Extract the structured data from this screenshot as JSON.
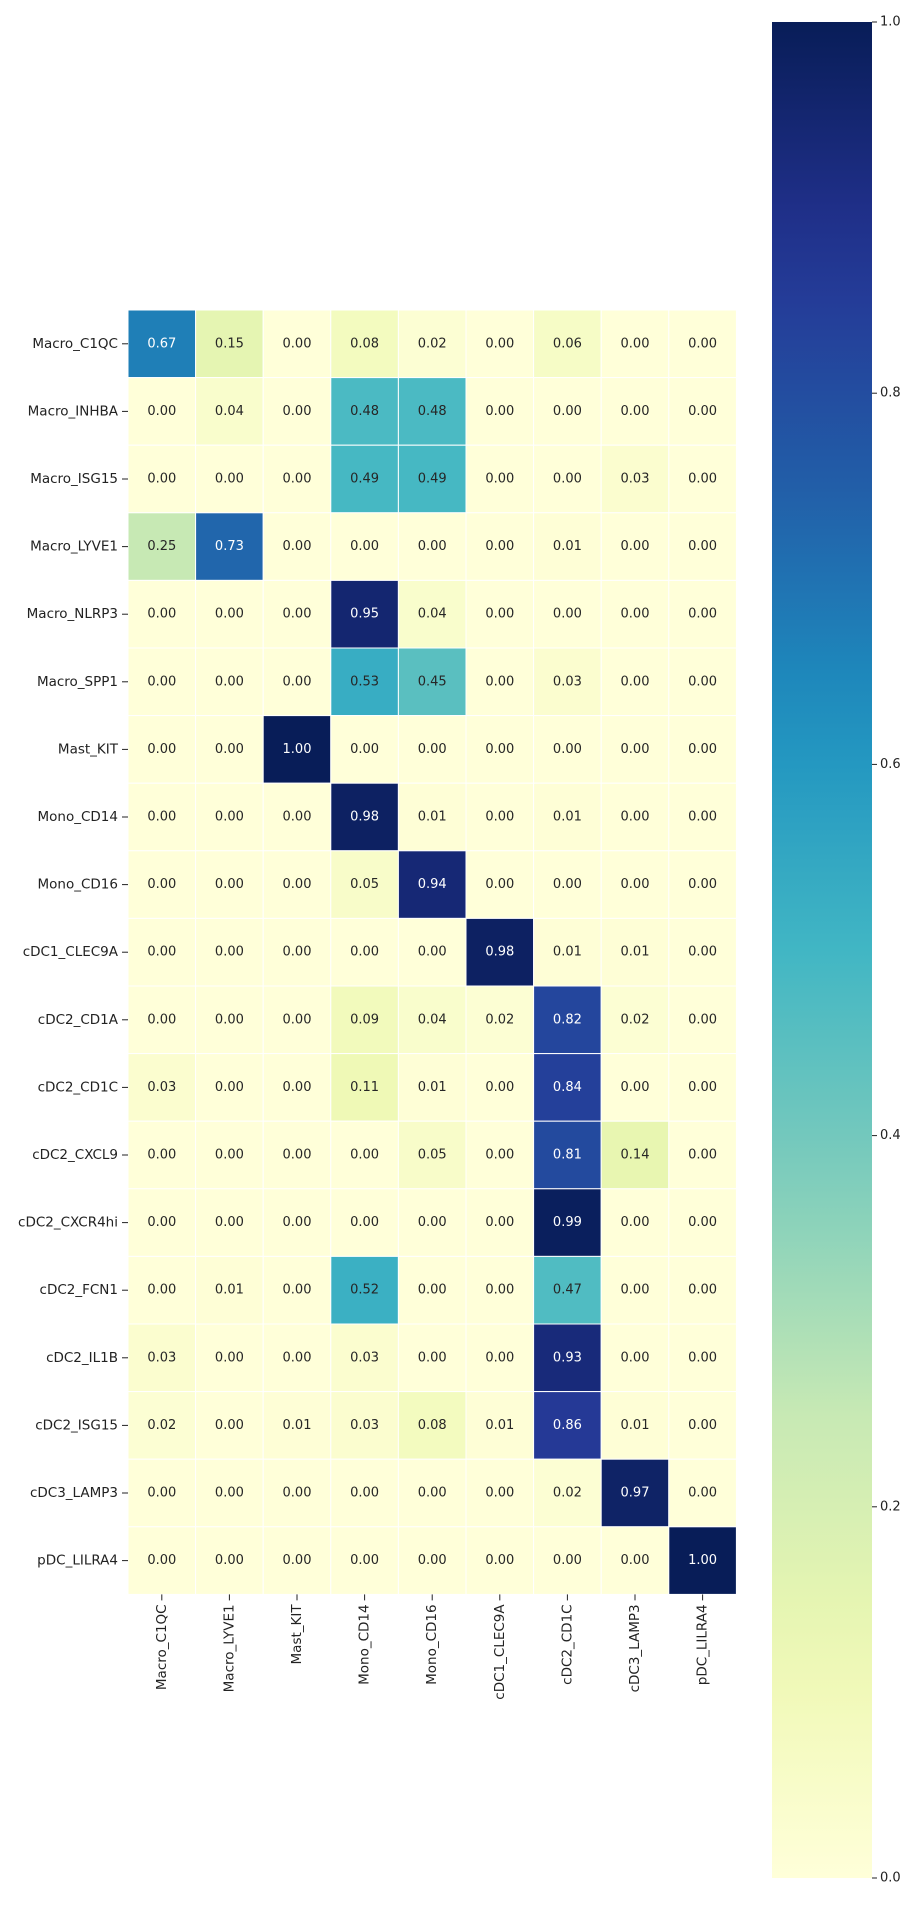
{
  "chart_data": {
    "type": "heatmap",
    "title": "",
    "xlabel": "",
    "ylabel": "",
    "colormap": "YlGnBu",
    "vlim": [
      0,
      1
    ],
    "cell_border_color": "#ffffff",
    "annotation_format": "0.00",
    "x_categories": [
      "Macro_C1QC",
      "Macro_LYVE1",
      "Mast_KIT",
      "Mono_CD14",
      "Mono_CD16",
      "cDC1_CLEC9A",
      "cDC2_CD1C",
      "cDC3_LAMP3",
      "pDC_LILRA4"
    ],
    "y_categories": [
      "Macro_C1QC",
      "Macro_INHBA",
      "Macro_ISG15",
      "Macro_LYVE1",
      "Macro_NLRP3",
      "Macro_SPP1",
      "Mast_KIT",
      "Mono_CD14",
      "Mono_CD16",
      "cDC1_CLEC9A",
      "cDC2_CD1A",
      "cDC2_CD1C",
      "cDC2_CXCL9",
      "cDC2_CXCR4hi",
      "cDC2_FCN1",
      "cDC2_IL1B",
      "cDC2_ISG15",
      "cDC3_LAMP3",
      "pDC_LILRA4"
    ],
    "values": [
      [
        0.67,
        0.15,
        0.0,
        0.08,
        0.02,
        0.0,
        0.06,
        0.0,
        0.0
      ],
      [
        0.0,
        0.04,
        0.0,
        0.48,
        0.48,
        0.0,
        0.0,
        0.0,
        0.0
      ],
      [
        0.0,
        0.0,
        0.0,
        0.49,
        0.49,
        0.0,
        0.0,
        0.03,
        0.0
      ],
      [
        0.25,
        0.73,
        0.0,
        0.0,
        0.0,
        0.0,
        0.01,
        0.0,
        0.0
      ],
      [
        0.0,
        0.0,
        0.0,
        0.95,
        0.04,
        0.0,
        0.0,
        0.0,
        0.0
      ],
      [
        0.0,
        0.0,
        0.0,
        0.53,
        0.45,
        0.0,
        0.03,
        0.0,
        0.0
      ],
      [
        0.0,
        0.0,
        1.0,
        0.0,
        0.0,
        0.0,
        0.0,
        0.0,
        0.0
      ],
      [
        0.0,
        0.0,
        0.0,
        0.98,
        0.01,
        0.0,
        0.01,
        0.0,
        0.0
      ],
      [
        0.0,
        0.0,
        0.0,
        0.05,
        0.94,
        0.0,
        0.0,
        0.0,
        0.0
      ],
      [
        0.0,
        0.0,
        0.0,
        0.0,
        0.0,
        0.98,
        0.01,
        0.01,
        0.0
      ],
      [
        0.0,
        0.0,
        0.0,
        0.09,
        0.04,
        0.02,
        0.82,
        0.02,
        0.0
      ],
      [
        0.03,
        0.0,
        0.0,
        0.11,
        0.01,
        0.0,
        0.84,
        0.0,
        0.0
      ],
      [
        0.0,
        0.0,
        0.0,
        0.0,
        0.05,
        0.0,
        0.81,
        0.14,
        0.0
      ],
      [
        0.0,
        0.0,
        0.0,
        0.0,
        0.0,
        0.0,
        0.99,
        0.0,
        0.0
      ],
      [
        0.0,
        0.01,
        0.0,
        0.52,
        0.0,
        0.0,
        0.47,
        0.0,
        0.0
      ],
      [
        0.03,
        0.0,
        0.0,
        0.03,
        0.0,
        0.0,
        0.93,
        0.0,
        0.0
      ],
      [
        0.02,
        0.0,
        0.01,
        0.03,
        0.08,
        0.01,
        0.86,
        0.01,
        0.0
      ],
      [
        0.0,
        0.0,
        0.0,
        0.0,
        0.0,
        0.0,
        0.02,
        0.97,
        0.0
      ],
      [
        0.0,
        0.0,
        0.0,
        0.0,
        0.0,
        0.0,
        0.0,
        0.0,
        1.0
      ]
    ],
    "colorbar": {
      "ticks": [
        0.0,
        0.2,
        0.4,
        0.6,
        0.8,
        1.0
      ],
      "tick_labels": [
        "0.0",
        "0.2",
        "0.4",
        "0.6",
        "0.8",
        "1.0"
      ]
    },
    "grid": false,
    "legend": "colorbar-right"
  }
}
